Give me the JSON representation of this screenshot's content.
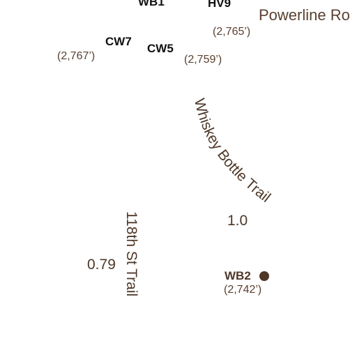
{
  "waypoints": {
    "wb1": {
      "code": "WB1"
    },
    "hv9": {
      "code": "HV9"
    },
    "cw7": {
      "code": "CW7",
      "elevation": "(2,767’)"
    },
    "cw5": {
      "code": "CW5",
      "elevation": "(2,759’)"
    },
    "hv9_elev": {
      "elevation": "(2,765’)"
    },
    "wb2": {
      "code": "WB2",
      "elevation": "(2,742’)"
    }
  },
  "roads": {
    "powerline": "Powerline Ro"
  },
  "trails": {
    "whiskey_bottle": {
      "name": "Whiskey Bottle Trail",
      "distance": "1.0"
    },
    "st118": {
      "name": "118th St Trail",
      "distance": "0.79"
    }
  },
  "colors": {
    "label_brown": "#4e3829",
    "code_black": "#111111",
    "background": "#ffffff"
  }
}
